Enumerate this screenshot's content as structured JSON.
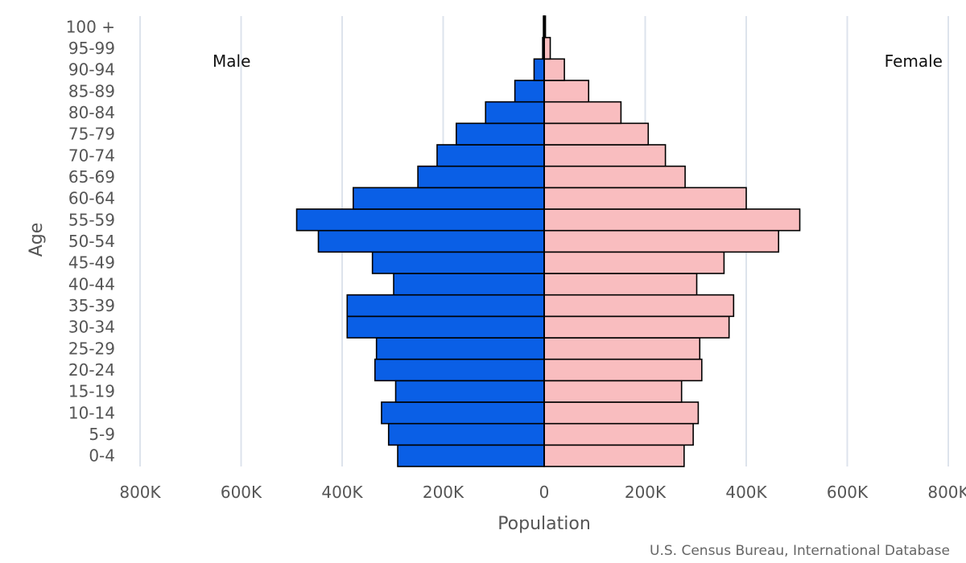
{
  "chart_data": {
    "type": "bar",
    "orientation": "horizontal",
    "subtype": "population-pyramid",
    "categories": [
      "0-4",
      "5-9",
      "10-14",
      "15-19",
      "20-24",
      "25-29",
      "30-34",
      "35-39",
      "40-44",
      "45-49",
      "50-54",
      "55-59",
      "60-64",
      "65-69",
      "70-74",
      "75-79",
      "80-84",
      "85-89",
      "90-94",
      "95-99",
      "100 +"
    ],
    "series": [
      {
        "name": "Male",
        "color": "#0a5fe6",
        "values": [
          290000,
          308000,
          322000,
          294000,
          335000,
          332000,
          390000,
          390000,
          298000,
          340000,
          447000,
          490000,
          378000,
          250000,
          212000,
          174000,
          116000,
          58000,
          20000,
          3000,
          1500
        ]
      },
      {
        "name": "Female",
        "color": "#f9bdbf",
        "values": [
          277000,
          295000,
          305000,
          272000,
          312000,
          308000,
          366000,
          375000,
          302000,
          356000,
          464000,
          506000,
          400000,
          279000,
          240000,
          206000,
          152000,
          88000,
          40000,
          12000,
          2500
        ]
      }
    ],
    "xlabel": "Population",
    "ylabel": "Age",
    "xlim": [
      -800000,
      800000
    ],
    "xticks": [
      "800K",
      "600K",
      "400K",
      "200K",
      "0",
      "200K",
      "400K",
      "600K",
      "800K"
    ],
    "grid": true,
    "annotations": {
      "left": "Male",
      "right": "Female"
    },
    "source": "U.S. Census Bureau, International Database"
  }
}
